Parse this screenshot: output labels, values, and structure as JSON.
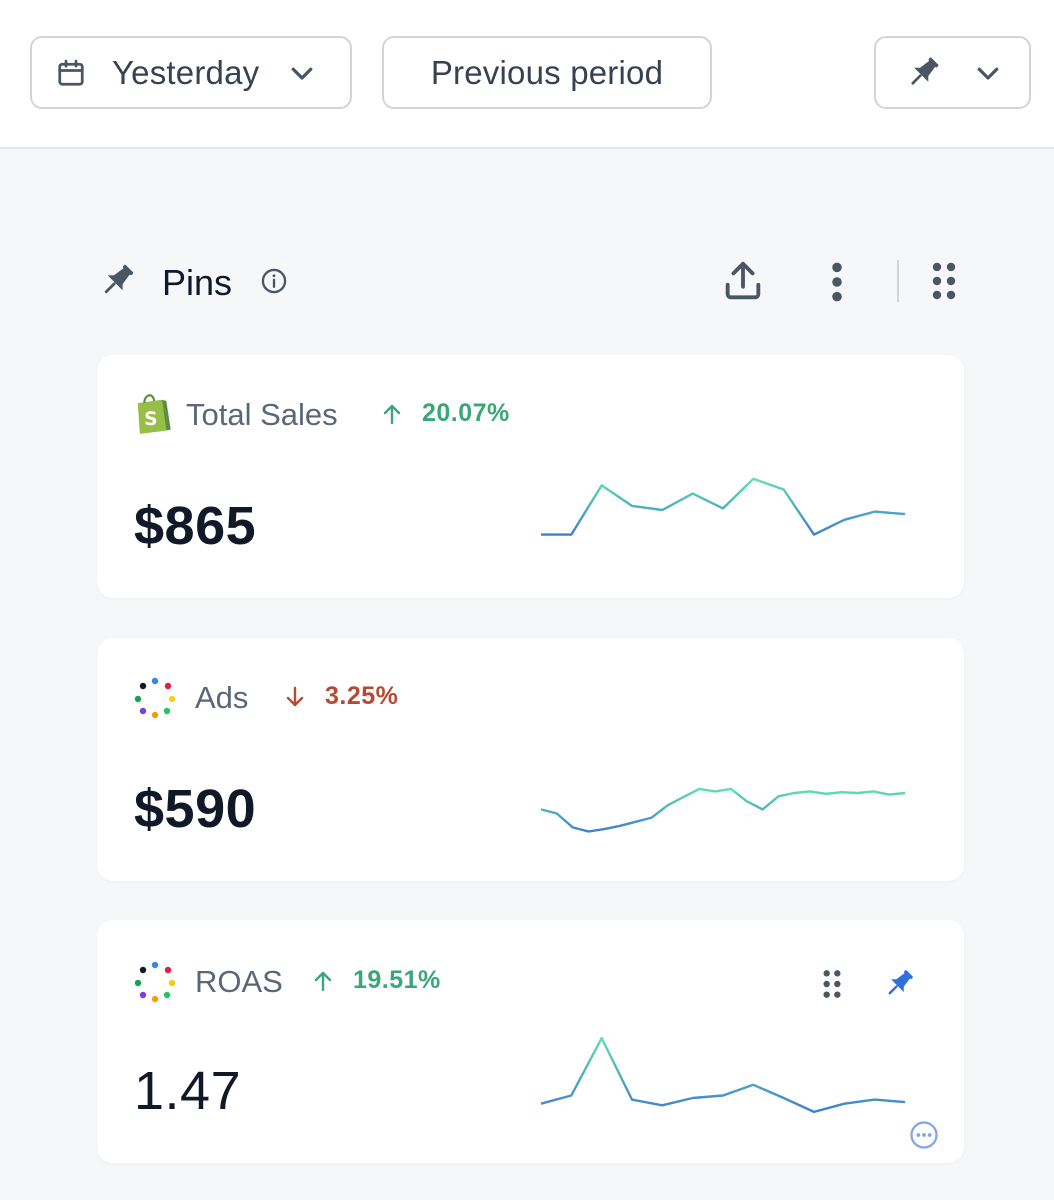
{
  "toolbar": {
    "date_range": "Yesterday",
    "comparison": "Previous period"
  },
  "pins": {
    "title": "Pins"
  },
  "colors": {
    "positive": "#3aa67a",
    "negative": "#b54a33",
    "accent_blue": "#2f6fde",
    "shopify_green": "#95bf47",
    "spark_start": "#3f7fd0",
    "spark_end": "#5fe0b0"
  },
  "cards": [
    {
      "title": "Total Sales",
      "source_icon": "shopify-icon",
      "trend": "up",
      "change": "20.07%",
      "value": "$865",
      "sparkline": [
        0.2,
        0.2,
        0.8,
        0.55,
        0.5,
        0.7,
        0.52,
        0.88,
        0.75,
        0.2,
        0.38,
        0.48,
        0.45
      ]
    },
    {
      "title": "Ads",
      "source_icon": "dots-ring-icon",
      "trend": "down",
      "change": "3.25%",
      "value": "$590",
      "sparkline": [
        0.3,
        0.25,
        0.08,
        0.03,
        0.06,
        0.1,
        0.15,
        0.2,
        0.35,
        0.45,
        0.55,
        0.52,
        0.55,
        0.4,
        0.3,
        0.46,
        0.5,
        0.52,
        0.49,
        0.51,
        0.5,
        0.52,
        0.48,
        0.5
      ]
    },
    {
      "title": "ROAS",
      "source_icon": "dots-ring-icon",
      "trend": "up",
      "change": "19.51%",
      "value": "1.47",
      "sparkline": [
        0.15,
        0.25,
        0.95,
        0.2,
        0.13,
        0.22,
        0.25,
        0.38,
        0.22,
        0.05,
        0.15,
        0.2,
        0.17
      ]
    }
  ]
}
